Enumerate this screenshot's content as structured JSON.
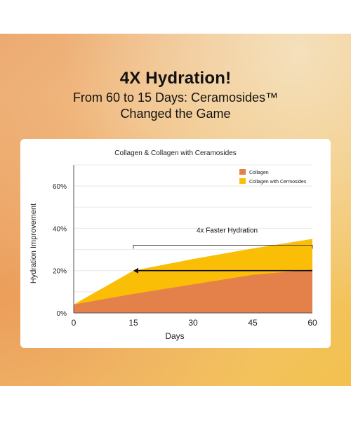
{
  "headline": "4X Hydration!",
  "subline": [
    "From 60 to 15 Days: Ceramosides™",
    "Changed the Game"
  ],
  "chart_data": {
    "type": "area",
    "title": "Collagen & Collagen with Ceramosides",
    "xlabel": "Days",
    "ylabel": "Hydration Improvement",
    "x": [
      0,
      15,
      30,
      45,
      60
    ],
    "xticks": [
      "0",
      "15",
      "30",
      "45",
      "60"
    ],
    "yticks": [
      0,
      20,
      40,
      60
    ],
    "ytick_labels": [
      "0%",
      "20%",
      "40%",
      "60%"
    ],
    "xlim": [
      0,
      60
    ],
    "ylim": [
      0,
      70
    ],
    "grid": "horizontal",
    "legend_position": "top-right",
    "series": [
      {
        "name": "Collagen",
        "color": "#e4804a",
        "values": [
          4,
          9,
          13.5,
          18,
          20.5
        ]
      },
      {
        "name": "Collagen with Cermosides",
        "color": "#fbbe07",
        "values": [
          4,
          20,
          25.5,
          30.5,
          35
        ]
      }
    ],
    "annotation": {
      "label": "4x Faster Hydration",
      "from_x": 60,
      "to_x": 15,
      "y": 20,
      "bracket_y": 32
    }
  }
}
